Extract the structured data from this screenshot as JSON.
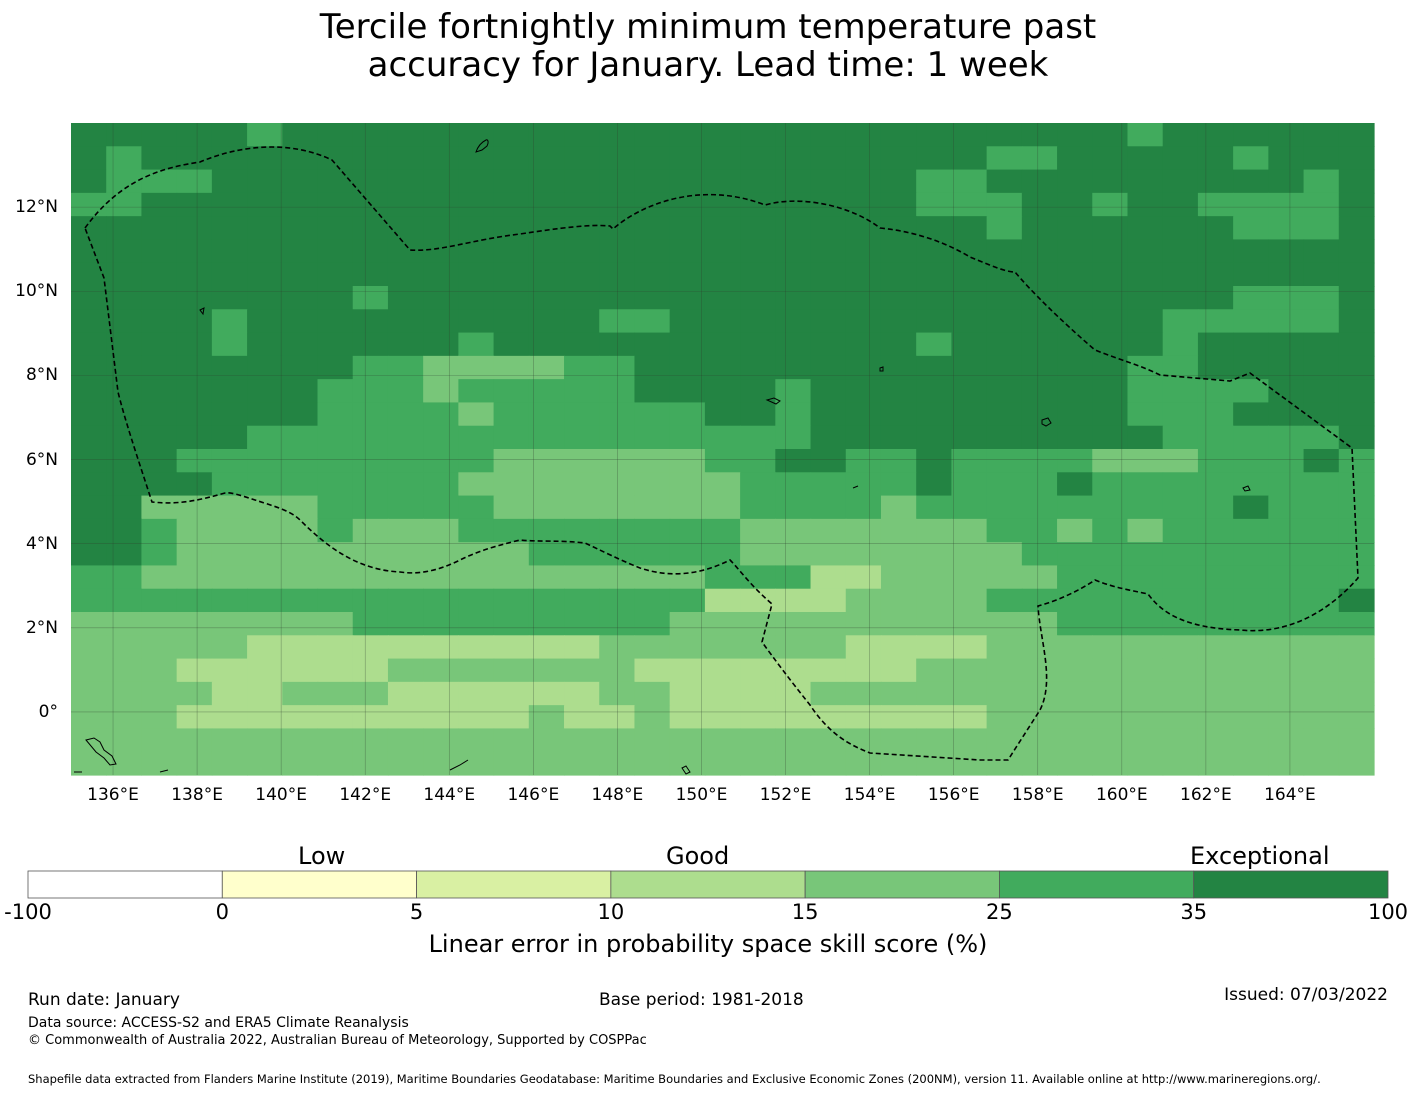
{
  "title_line1": "Tercile fortnightly minimum temperature past",
  "title_line2": "accuracy for January. Lead time: 1 week",
  "map": {
    "lon_range": [
      135.0,
      166.0
    ],
    "lat_range": [
      -1.5,
      14.0
    ],
    "lon_ticks": [
      {
        "value": 136,
        "label": "136°E"
      },
      {
        "value": 138,
        "label": "138°E"
      },
      {
        "value": 140,
        "label": "140°E"
      },
      {
        "value": 142,
        "label": "142°E"
      },
      {
        "value": 144,
        "label": "144°E"
      },
      {
        "value": 146,
        "label": "146°E"
      },
      {
        "value": 148,
        "label": "148°E"
      },
      {
        "value": 150,
        "label": "150°E"
      },
      {
        "value": 152,
        "label": "152°E"
      },
      {
        "value": 154,
        "label": "154°E"
      },
      {
        "value": 156,
        "label": "156°E"
      },
      {
        "value": 158,
        "label": "158°E"
      },
      {
        "value": 160,
        "label": "160°E"
      },
      {
        "value": 162,
        "label": "162°E"
      },
      {
        "value": 164,
        "label": "164°E"
      }
    ],
    "lat_ticks": [
      {
        "value": 12,
        "label": "12°N"
      },
      {
        "value": 10,
        "label": "10°N"
      },
      {
        "value": 8,
        "label": "8°N"
      },
      {
        "value": 6,
        "label": "6°N"
      },
      {
        "value": 4,
        "label": "4°N"
      },
      {
        "value": 2,
        "label": "2°N"
      },
      {
        "value": 0,
        "label": "0°"
      }
    ],
    "grid_cols": 37,
    "grid_rows": 28,
    "skill_grid": [
      "6666656666666666666666666666665666666",
      "6566666666666666666666666655666665666",
      "6555666666666666666666665566666666656",
      "5566666666666666666666665556656655556",
      "6666666666666666666666666656666665556",
      "6666666666666666666666666666666666666",
      "6666666666666666666666666666666666666",
      "6666666656666666666666666666666665556",
      "6666566666666665566666666666666555556",
      "6666566666656666666666665666666566666",
      "6666666655444455666666666666665566666",
      "6666666555455555666656666666665555666",
      "6666666555545555556656666666665556666",
      "6666655555555555555556666666666555556",
      "6665555555554444445566556555544455565",
      "6666555555544444444555556555655555555",
      "6644444555554444444555545555555556555",
      "6654444544455555555444444455454555555",
      "6654444444444555555444444445555555555",
      "5544444444444444445553344444555555555",
      "5555555555555555553333444455555555556",
      "4444444455555555544444444444555555555",
      "4444433333333334444444333344444444444",
      "4443333334444444333333334444444444444",
      "4444334443333334433334444444444444444",
      "4443333333333433433333333344444444444",
      "4444444444444444444444444444444444444",
      "4444444444444444444444444444444444444"
    ]
  },
  "colorbar": {
    "category_low": "Low",
    "category_good": "Good",
    "category_exceptional": "Exceptional",
    "bins": [
      {
        "from": "-100",
        "to": "0",
        "color": "#ffffff"
      },
      {
        "from": "0",
        "to": "5",
        "color": "#ffffcc"
      },
      {
        "from": "5",
        "to": "10",
        "color": "#d9f0a3"
      },
      {
        "from": "10",
        "to": "15",
        "color": "#addd8e"
      },
      {
        "from": "15",
        "to": "25",
        "color": "#78c679"
      },
      {
        "from": "25",
        "to": "35",
        "color": "#41ab5d"
      },
      {
        "from": "35",
        "to": "100",
        "color": "#238443"
      }
    ],
    "tick_labels": [
      "-100",
      "0",
      "5",
      "10",
      "15",
      "25",
      "35",
      "100"
    ],
    "title": "Linear error in probability space skill score (%)"
  },
  "footer": {
    "run_date": "Run date: January",
    "base_period": "Base period: 1981-2018",
    "issued": "Issued: 07/03/2022",
    "data_source": "Data source: ACCESS-S2 and ERA5 Climate Reanalysis",
    "copyright": "© Commonwealth of Australia 2022, Australian Bureau of Meteorology, Supported by COSPPac",
    "shapefile_credit": "Shapefile data extracted from Flanders Marine Institute (2019), Maritime Boundaries Geodatabase: Maritime Boundaries and Exclusive Economic Zones (200NM), version 11. Available online at http://www.marineregions.org/."
  }
}
